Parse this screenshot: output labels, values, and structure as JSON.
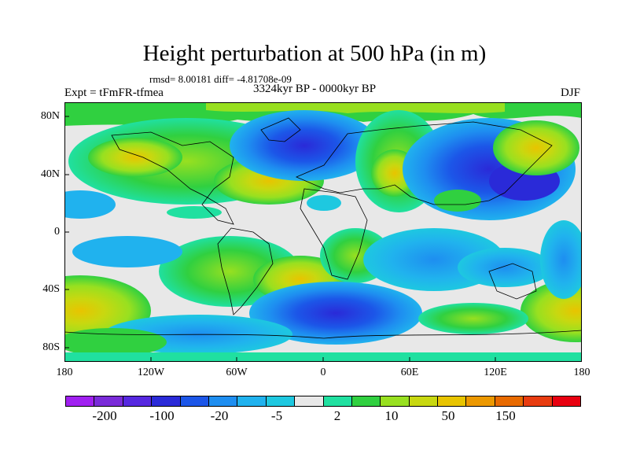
{
  "title": "Height perturbation at 500 hPa (in m)",
  "stats": "rmsd= 8.00181 diff= -4.81708e-09",
  "expt": "Expt = tFmFR-tfmea",
  "period": "3324kyr BP - 0000kyr BP",
  "season": "DJF",
  "lat_labels": [
    "80N",
    "40N",
    "0",
    "40S",
    "80S"
  ],
  "lon_labels": [
    "180",
    "120W",
    "60W",
    "0",
    "60E",
    "120E",
    "180"
  ],
  "colorbar": {
    "labels": [
      "-200",
      "-100",
      "-20",
      "-5",
      "2",
      "10",
      "50",
      "150"
    ],
    "colors": [
      "#a020f0",
      "#7a2bd9",
      "#5628e0",
      "#2a2ad8",
      "#1c56e8",
      "#1e8ef0",
      "#20b2ee",
      "#1ec8e0",
      "#e8e8e8",
      "#20e0a0",
      "#30d040",
      "#98e020",
      "#c8d810",
      "#e8c400",
      "#ec9800",
      "#e86a00",
      "#e83c10",
      "#e80010"
    ]
  },
  "map_data": {
    "type": "filled-contour",
    "projection": "cylindrical-equidistant",
    "lon_range": [
      -180,
      180
    ],
    "lat_range": [
      -90,
      90
    ],
    "units": "m"
  }
}
